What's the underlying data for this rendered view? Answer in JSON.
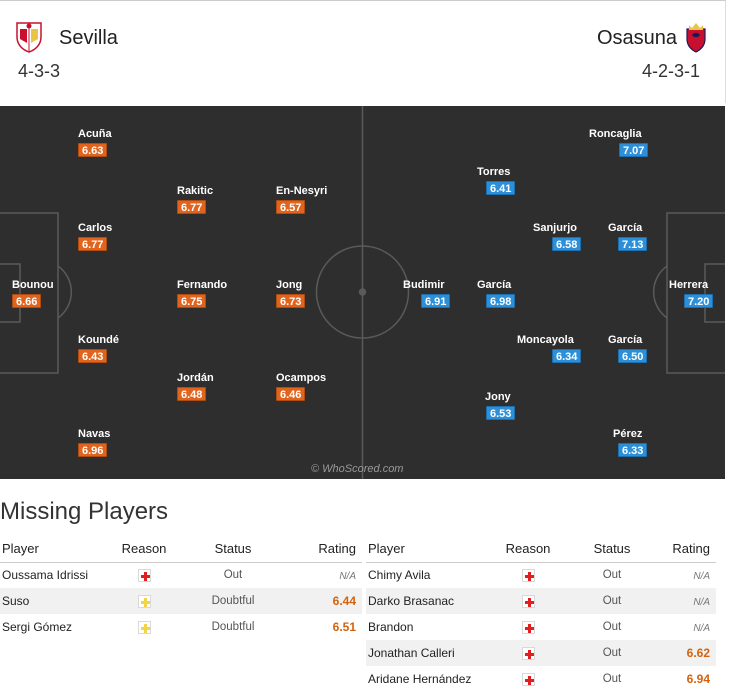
{
  "home": {
    "name": "Sevilla",
    "formation": "4-3-3",
    "color": "#e0641d",
    "crest_icon": "sevilla-crest-icon",
    "players": [
      {
        "name": "Acuña",
        "rating": "6.63"
      },
      {
        "name": "Rakitic",
        "rating": "6.77"
      },
      {
        "name": "En-Nesyri",
        "rating": "6.57"
      },
      {
        "name": "Carlos",
        "rating": "6.77"
      },
      {
        "name": "Bounou",
        "rating": "6.66"
      },
      {
        "name": "Fernando",
        "rating": "6.75"
      },
      {
        "name": "Jong",
        "rating": "6.73"
      },
      {
        "name": "Koundé",
        "rating": "6.43"
      },
      {
        "name": "Jordán",
        "rating": "6.48"
      },
      {
        "name": "Ocampos",
        "rating": "6.46"
      },
      {
        "name": "Navas",
        "rating": "6.96"
      }
    ]
  },
  "away": {
    "name": "Osasuna",
    "formation": "4-2-3-1",
    "color": "#2c8fd8",
    "crest_icon": "osasuna-crest-icon",
    "players": [
      {
        "name": "Roncaglia",
        "rating": "7.07"
      },
      {
        "name": "Torres",
        "rating": "6.41"
      },
      {
        "name": "Sanjurjo",
        "rating": "6.58"
      },
      {
        "name": "García",
        "rating": "7.13"
      },
      {
        "name": "Budimir",
        "rating": "6.91"
      },
      {
        "name": "García",
        "rating": "6.98"
      },
      {
        "name": "Herrera",
        "rating": "7.20"
      },
      {
        "name": "Moncayola",
        "rating": "6.34"
      },
      {
        "name": "García",
        "rating": "6.50"
      },
      {
        "name": "Jony",
        "rating": "6.53"
      },
      {
        "name": "Pérez",
        "rating": "6.33"
      }
    ]
  },
  "watermark": "© WhoScored.com",
  "missing": {
    "title": "Missing Players",
    "headers": {
      "player": "Player",
      "reason": "Reason",
      "status": "Status",
      "rating": "Rating"
    },
    "home": [
      {
        "player": "Oussama Idrissi",
        "reason": "red-cross-icon",
        "status": "Out",
        "rating": "N/A"
      },
      {
        "player": "Suso",
        "reason": "yellow-cross-icon",
        "status": "Doubtful",
        "rating": "6.44"
      },
      {
        "player": "Sergi Gómez",
        "reason": "yellow-cross-icon",
        "status": "Doubtful",
        "rating": "6.51"
      }
    ],
    "away": [
      {
        "player": "Chimy Avila",
        "reason": "red-cross-icon",
        "status": "Out",
        "rating": "N/A"
      },
      {
        "player": "Darko Brasanac",
        "reason": "red-cross-icon",
        "status": "Out",
        "rating": "N/A"
      },
      {
        "player": "Brandon",
        "reason": "red-cross-icon",
        "status": "Out",
        "rating": "N/A"
      },
      {
        "player": "Jonathan Calleri",
        "reason": "red-cross-icon",
        "status": "Out",
        "rating": "6.62"
      },
      {
        "player": "Aridane Hernández",
        "reason": "red-cross-icon",
        "status": "Out",
        "rating": "6.94"
      }
    ]
  }
}
